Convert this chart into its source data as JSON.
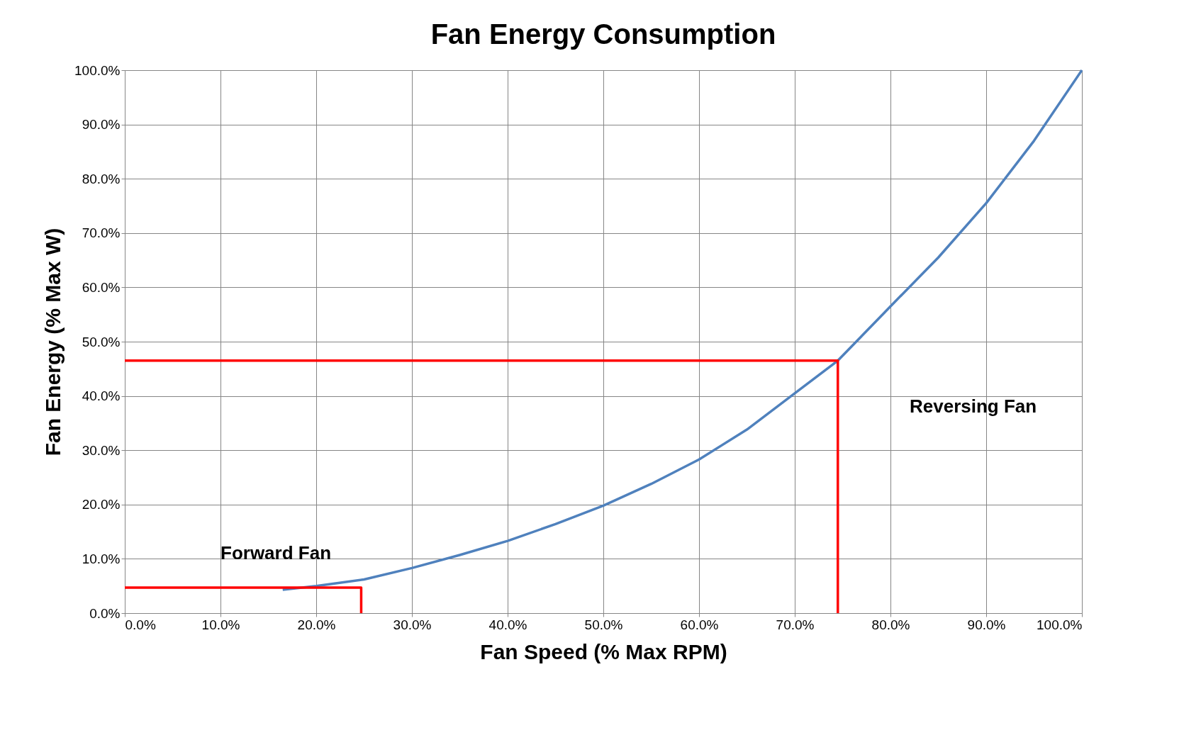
{
  "chart_data": {
    "type": "line",
    "title": "Fan Energy Consumption",
    "xlabel": "Fan Speed (% Max RPM)",
    "ylabel": "Fan Energy (% Max W)",
    "xlim": [
      0,
      100
    ],
    "ylim": [
      0,
      100
    ],
    "xticks": [
      {
        "value": 0,
        "label": "0.0%"
      },
      {
        "value": 10,
        "label": "10.0%"
      },
      {
        "value": 20,
        "label": "20.0%"
      },
      {
        "value": 30,
        "label": "30.0%"
      },
      {
        "value": 40,
        "label": "40.0%"
      },
      {
        "value": 50,
        "label": "50.0%"
      },
      {
        "value": 60,
        "label": "60.0%"
      },
      {
        "value": 70,
        "label": "70.0%"
      },
      {
        "value": 80,
        "label": "80.0%"
      },
      {
        "value": 90,
        "label": "90.0%"
      },
      {
        "value": 100,
        "label": "100.0%"
      }
    ],
    "yticks": [
      {
        "value": 0,
        "label": "0.0%"
      },
      {
        "value": 10,
        "label": "10.0%"
      },
      {
        "value": 20,
        "label": "20.0%"
      },
      {
        "value": 30,
        "label": "30.0%"
      },
      {
        "value": 40,
        "label": "40.0%"
      },
      {
        "value": 50,
        "label": "50.0%"
      },
      {
        "value": 60,
        "label": "60.0%"
      },
      {
        "value": 70,
        "label": "70.0%"
      },
      {
        "value": 80,
        "label": "80.0%"
      },
      {
        "value": 90,
        "label": "90.0%"
      },
      {
        "value": 100,
        "label": "100.0%"
      }
    ],
    "grid": true,
    "marker": "none",
    "line_style": "solid",
    "series": [
      {
        "color": "#4f81bd",
        "x": [
          16.5,
          20,
          25,
          30,
          35,
          40,
          45,
          50,
          55,
          60,
          65,
          70,
          74.5,
          80,
          85,
          90,
          95,
          100
        ],
        "values": [
          4.3,
          5.0,
          6.2,
          8.3,
          10.7,
          13.3,
          16.4,
          19.8,
          23.8,
          28.3,
          33.8,
          40.5,
          46.5,
          56.5,
          65.5,
          75.5,
          87.0,
          100
        ]
      },
      {
        "color": "#ff0000",
        "x": [
          0,
          24.7,
          24.7
        ],
        "values": [
          4.7,
          4.7,
          0
        ]
      },
      {
        "color": "#ff0000",
        "x": [
          0,
          74.5,
          74.5
        ],
        "values": [
          46.5,
          46.5,
          0
        ]
      }
    ],
    "annotations": [
      "Forward Fan",
      "Reversing Fan"
    ]
  }
}
